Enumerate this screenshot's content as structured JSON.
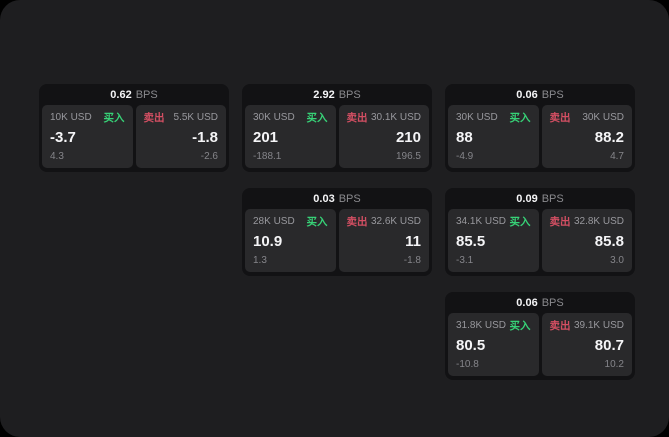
{
  "colors": {
    "buy_green": "#37d277",
    "sell_red": "#d44f63",
    "panel_bg": "#1e1e20",
    "card_bg": "#121214",
    "tile_bg": "#29292b"
  },
  "labels": {
    "bps": "BPS",
    "buy": "买入",
    "sell": "卖出"
  },
  "cards": [
    {
      "bps": "0.62",
      "buy": {
        "amount": "10K USD",
        "main": "-3.7",
        "sub": "4.3"
      },
      "sell": {
        "amount": "5.5K USD",
        "main": "-1.8",
        "sub": "-2.6"
      }
    },
    {
      "bps": "2.92",
      "buy": {
        "amount": "30K USD",
        "main": "201",
        "sub": "-188.1"
      },
      "sell": {
        "amount": "30.1K USD",
        "main": "210",
        "sub": "196.5"
      }
    },
    {
      "bps": "0.06",
      "buy": {
        "amount": "30K USD",
        "main": "88",
        "sub": "-4.9"
      },
      "sell": {
        "amount": "30K USD",
        "main": "88.2",
        "sub": "4.7"
      }
    },
    {
      "bps": "0.03",
      "buy": {
        "amount": "28K USD",
        "main": "10.9",
        "sub": "1.3"
      },
      "sell": {
        "amount": "32.6K USD",
        "main": "11",
        "sub": "-1.8"
      }
    },
    {
      "bps": "0.09",
      "buy": {
        "amount": "34.1K USD",
        "main": "85.5",
        "sub": "-3.1"
      },
      "sell": {
        "amount": "32.8K USD",
        "main": "85.8",
        "sub": "3.0"
      }
    },
    {
      "bps": "0.06",
      "buy": {
        "amount": "31.8K USD",
        "main": "80.5",
        "sub": "-10.8"
      },
      "sell": {
        "amount": "39.1K USD",
        "main": "80.7",
        "sub": "10.2"
      }
    }
  ]
}
